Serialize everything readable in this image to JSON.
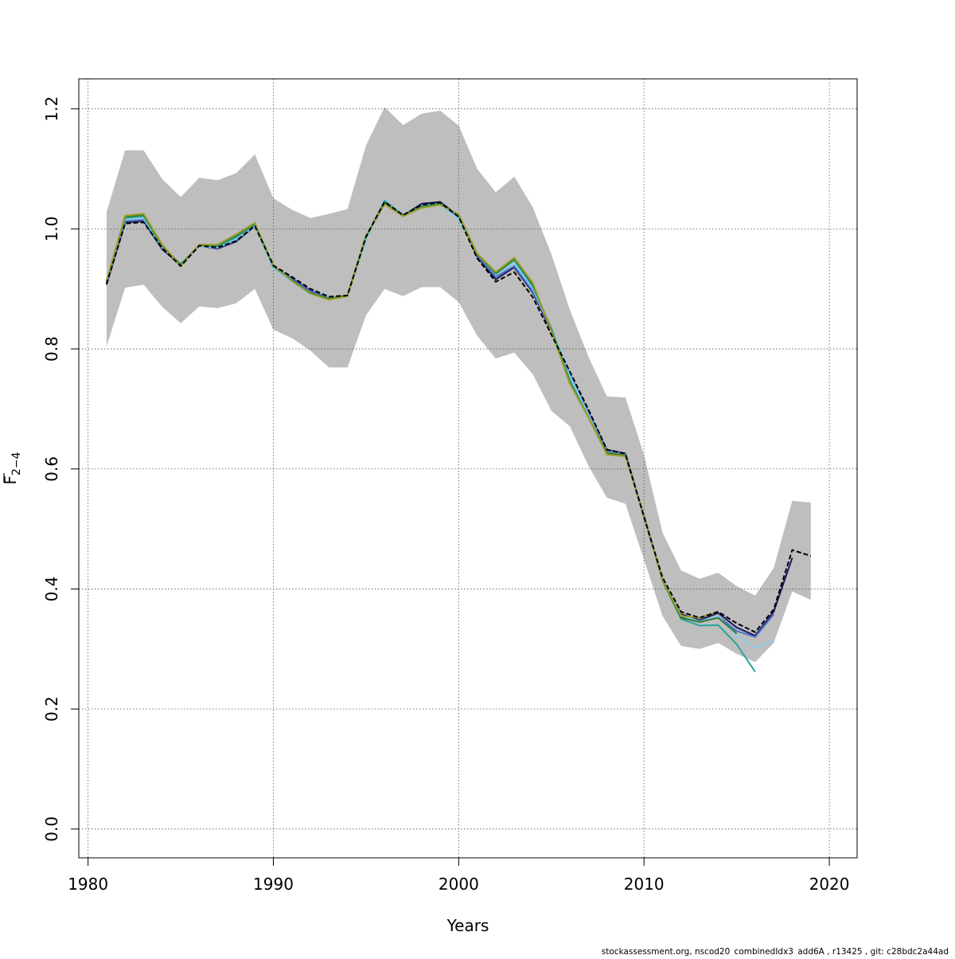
{
  "chart_data": {
    "type": "line",
    "title": "",
    "xlabel": "Years",
    "ylabel": "F̅ 2−4",
    "ylabel_main": "F",
    "ylabel_sub": "2−4",
    "xlim": [
      1979.5,
      2021.5
    ],
    "ylim": [
      -0.048,
      1.25
    ],
    "x_ticks": [
      1980,
      1990,
      2000,
      2010,
      2020
    ],
    "x_tick_labels": [
      "1980",
      "1990",
      "2000",
      "2010",
      "2020"
    ],
    "y_ticks": [
      0.0,
      0.2,
      0.4,
      0.6,
      0.8,
      1.0,
      1.2
    ],
    "y_tick_labels": [
      "0.0",
      "0.2",
      "0.4",
      "0.6",
      "0.8",
      "1.0",
      "1.2"
    ],
    "grid": true,
    "legend": "none",
    "caption": "stockassessment.org, nscod20_combinedIdx3_add6A , r13425 , git: c28bdc2a44ad",
    "confidence_band": {
      "color": "#bebebe",
      "x": [
        1981,
        1982,
        1983,
        1984,
        1985,
        1986,
        1987,
        1988,
        1989,
        1990,
        1991,
        1992,
        1993,
        1994,
        1995,
        1996,
        1997,
        1998,
        1999,
        2000,
        2001,
        2002,
        2003,
        2004,
        2005,
        2006,
        2007,
        2008,
        2009,
        2010,
        2011,
        2012,
        2013,
        2014,
        2015,
        2016,
        2017,
        2018,
        2019
      ],
      "upper": [
        1.028,
        1.131,
        1.131,
        1.083,
        1.053,
        1.085,
        1.081,
        1.093,
        1.124,
        1.051,
        1.032,
        1.018,
        1.025,
        1.033,
        1.139,
        1.203,
        1.173,
        1.192,
        1.197,
        1.172,
        1.1,
        1.061,
        1.087,
        1.036,
        0.958,
        0.865,
        0.787,
        0.721,
        0.719,
        0.624,
        0.494,
        0.431,
        0.417,
        0.427,
        0.405,
        0.389,
        0.435,
        0.547,
        0.544
      ],
      "lower": [
        0.804,
        0.902,
        0.907,
        0.87,
        0.843,
        0.871,
        0.868,
        0.876,
        0.9,
        0.832,
        0.818,
        0.797,
        0.769,
        0.769,
        0.856,
        0.9,
        0.888,
        0.903,
        0.903,
        0.878,
        0.822,
        0.784,
        0.794,
        0.758,
        0.697,
        0.671,
        0.605,
        0.552,
        0.542,
        0.449,
        0.355,
        0.305,
        0.3,
        0.31,
        0.292,
        0.278,
        0.31,
        0.396,
        0.382
      ]
    },
    "series": [
      {
        "color": "#1e1660",
        "width": 2,
        "x": [
          1981,
          1982,
          1983,
          1984,
          1985,
          1986,
          1987,
          1988,
          1989,
          1990,
          1991,
          1992,
          1993,
          1994,
          1995,
          1996,
          1997,
          1998,
          1999,
          2000,
          2001,
          2002,
          2003,
          2004,
          2005,
          2006,
          2007,
          2008,
          2009,
          2010,
          2011,
          2012,
          2013,
          2014,
          2015,
          2016,
          2017,
          2018
        ],
        "values": [
          0.907,
          1.011,
          1.013,
          0.966,
          0.94,
          0.972,
          0.967,
          0.979,
          1.005,
          0.937,
          0.917,
          0.897,
          0.884,
          0.889,
          0.987,
          1.045,
          1.022,
          1.042,
          1.045,
          1.021,
          0.954,
          0.916,
          0.936,
          0.894,
          0.83,
          0.758,
          0.694,
          0.632,
          0.626,
          0.52,
          0.416,
          0.358,
          0.348,
          0.36,
          0.336,
          0.322,
          0.362,
          0.452
        ]
      },
      {
        "color": "#4b72c9",
        "width": 2,
        "x": [
          1981,
          1982,
          1983,
          1984,
          1985,
          1986,
          1987,
          1988,
          1989,
          1990,
          1991,
          1992,
          1993,
          1994,
          1995,
          1996,
          1997,
          1998,
          1999,
          2000,
          2001,
          2002,
          2003,
          2004,
          2005,
          2006,
          2007,
          2008,
          2009,
          2010,
          2011,
          2012,
          2013,
          2014,
          2015,
          2016,
          2017
        ],
        "values": [
          0.909,
          1.013,
          1.015,
          0.968,
          0.941,
          0.972,
          0.968,
          0.98,
          1.006,
          0.938,
          0.916,
          0.896,
          0.884,
          0.889,
          0.987,
          1.046,
          1.022,
          1.038,
          1.042,
          1.02,
          0.956,
          0.92,
          0.938,
          0.896,
          0.832,
          0.758,
          0.693,
          0.631,
          0.625,
          0.521,
          0.418,
          0.355,
          0.345,
          0.355,
          0.33,
          0.32,
          0.358
        ]
      },
      {
        "color": "#87ceeb",
        "width": 2,
        "x": [
          1981,
          1982,
          1983,
          1984,
          1985,
          1986,
          1987,
          1988,
          1989,
          1990,
          1991,
          1992,
          1993,
          1994,
          1995,
          1996,
          1997,
          1998,
          1999,
          2000,
          2001,
          2002,
          2003,
          2004,
          2005,
          2006,
          2007,
          2008,
          2009,
          2010,
          2011,
          2012,
          2013,
          2014,
          2015,
          2016,
          2017
        ],
        "values": [
          0.911,
          1.016,
          1.018,
          0.969,
          0.94,
          0.971,
          0.969,
          0.984,
          1.004,
          0.934,
          0.912,
          0.891,
          0.884,
          0.889,
          0.982,
          1.048,
          1.022,
          1.037,
          1.041,
          1.015,
          0.958,
          0.924,
          0.943,
          0.9,
          0.834,
          0.755,
          0.69,
          0.627,
          0.622,
          0.522,
          0.419,
          0.356,
          0.346,
          0.355,
          0.322,
          0.302,
          0.314
        ]
      },
      {
        "color": "#26a69a",
        "width": 2,
        "x": [
          1981,
          1982,
          1983,
          1984,
          1985,
          1986,
          1987,
          1988,
          1989,
          1990,
          1991,
          1992,
          1993,
          1994,
          1995,
          1996,
          1997,
          1998,
          1999,
          2000,
          2001,
          2002,
          2003,
          2004,
          2005,
          2006,
          2007,
          2008,
          2009,
          2010,
          2011,
          2012,
          2013,
          2014,
          2015,
          2016
        ],
        "values": [
          0.912,
          1.018,
          1.021,
          0.971,
          0.941,
          0.973,
          0.971,
          0.986,
          1.007,
          0.937,
          0.914,
          0.892,
          0.884,
          0.889,
          0.985,
          1.047,
          1.023,
          1.038,
          1.043,
          1.021,
          0.958,
          0.925,
          0.948,
          0.904,
          0.834,
          0.748,
          0.686,
          0.627,
          0.622,
          0.523,
          0.414,
          0.35,
          0.339,
          0.34,
          0.308,
          0.262
        ]
      },
      {
        "color": "#2e7d32",
        "width": 2,
        "x": [
          1981,
          1982,
          1983,
          1984,
          1985,
          1986,
          1987,
          1988,
          1989,
          1990,
          1991,
          1992,
          1993,
          1994,
          1995,
          1996,
          1997,
          1998,
          1999,
          2000,
          2001,
          2002,
          2003,
          2004,
          2005,
          2006,
          2007,
          2008,
          2009,
          2010,
          2011,
          2012,
          2013,
          2014,
          2015
        ],
        "values": [
          0.913,
          1.02,
          1.023,
          0.972,
          0.94,
          0.973,
          0.973,
          0.989,
          1.009,
          0.938,
          0.914,
          0.893,
          0.884,
          0.889,
          0.988,
          1.042,
          1.022,
          1.036,
          1.041,
          1.023,
          0.958,
          0.926,
          0.95,
          0.907,
          0.832,
          0.744,
          0.686,
          0.627,
          0.622,
          0.522,
          0.414,
          0.352,
          0.345,
          0.352,
          0.326
        ]
      },
      {
        "color": "#9e9d24",
        "width": 2,
        "x": [
          1981,
          1982,
          1983,
          1984,
          1985,
          1986,
          1987,
          1988,
          1989,
          1990,
          1991,
          1992,
          1993,
          1994,
          1995,
          1996,
          1997,
          1998,
          1999,
          2000,
          2001,
          2002,
          2003,
          2004,
          2005,
          2006,
          2007,
          2008,
          2009,
          2010,
          2011,
          2012,
          2013,
          2014
        ],
        "values": [
          0.914,
          1.022,
          1.025,
          0.974,
          0.938,
          0.974,
          0.974,
          0.991,
          1.01,
          0.939,
          0.913,
          0.892,
          0.882,
          0.888,
          0.989,
          1.041,
          1.021,
          1.035,
          1.04,
          1.024,
          0.959,
          0.928,
          0.952,
          0.91,
          0.83,
          0.742,
          0.686,
          0.624,
          0.621,
          0.521,
          0.415,
          0.355,
          0.352,
          0.362
        ]
      },
      {
        "color": "#000000",
        "width": 2,
        "dashed": true,
        "x": [
          1981,
          1982,
          1983,
          1984,
          1985,
          1986,
          1987,
          1988,
          1989,
          1990,
          1991,
          1992,
          1993,
          1994,
          1995,
          1996,
          1997,
          1998,
          1999,
          2000,
          2001,
          2002,
          2003,
          2004,
          2005,
          2006,
          2007,
          2008,
          2009,
          2010,
          2011,
          2012,
          2013,
          2014,
          2015,
          2016,
          2017,
          2018,
          2019
        ],
        "values": [
          0.908,
          1.009,
          1.011,
          0.968,
          0.938,
          0.972,
          0.969,
          0.98,
          1.005,
          0.939,
          0.92,
          0.9,
          0.887,
          0.889,
          0.987,
          1.045,
          1.023,
          1.04,
          1.044,
          1.02,
          0.951,
          0.912,
          0.928,
          0.886,
          0.824,
          0.762,
          0.699,
          0.632,
          0.625,
          0.52,
          0.419,
          0.362,
          0.352,
          0.362,
          0.343,
          0.328,
          0.366,
          0.465,
          0.455
        ]
      }
    ]
  }
}
